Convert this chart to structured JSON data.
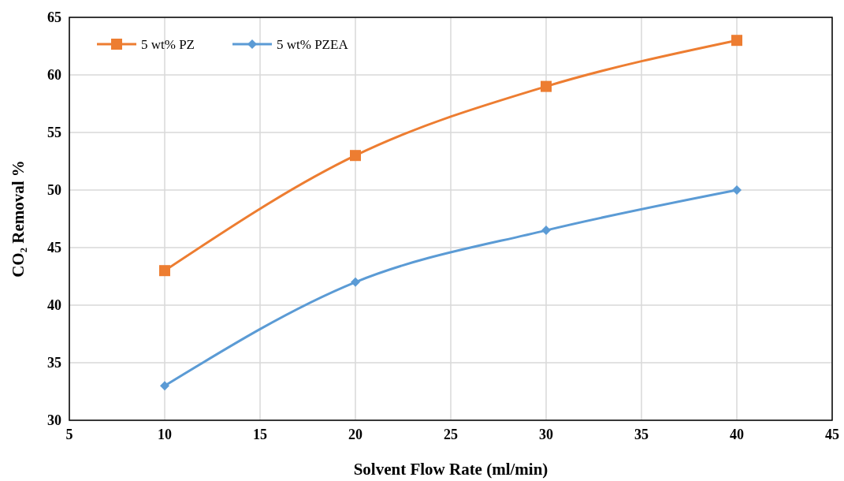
{
  "chart_data": {
    "type": "line",
    "xlabel": "Solvent Flow Rate (ml/min)",
    "ylabel": "CO₂ Removal %",
    "x": [
      10,
      20,
      30,
      40
    ],
    "xlim": [
      5,
      45
    ],
    "xticks": [
      5,
      10,
      15,
      20,
      25,
      30,
      35,
      40,
      45
    ],
    "ylim": [
      30,
      65
    ],
    "yticks": [
      30,
      35,
      40,
      45,
      50,
      55,
      60,
      65
    ],
    "grid": true,
    "legend": "top left",
    "series": [
      {
        "name": "5 wt% PZ",
        "color": "#ed7d31",
        "marker": "square",
        "values": [
          43,
          53,
          59,
          63
        ]
      },
      {
        "name": "5 wt% PZEA",
        "color": "#5b9bd5",
        "marker": "diamond",
        "values": [
          33,
          42,
          46.5,
          50
        ]
      }
    ]
  }
}
